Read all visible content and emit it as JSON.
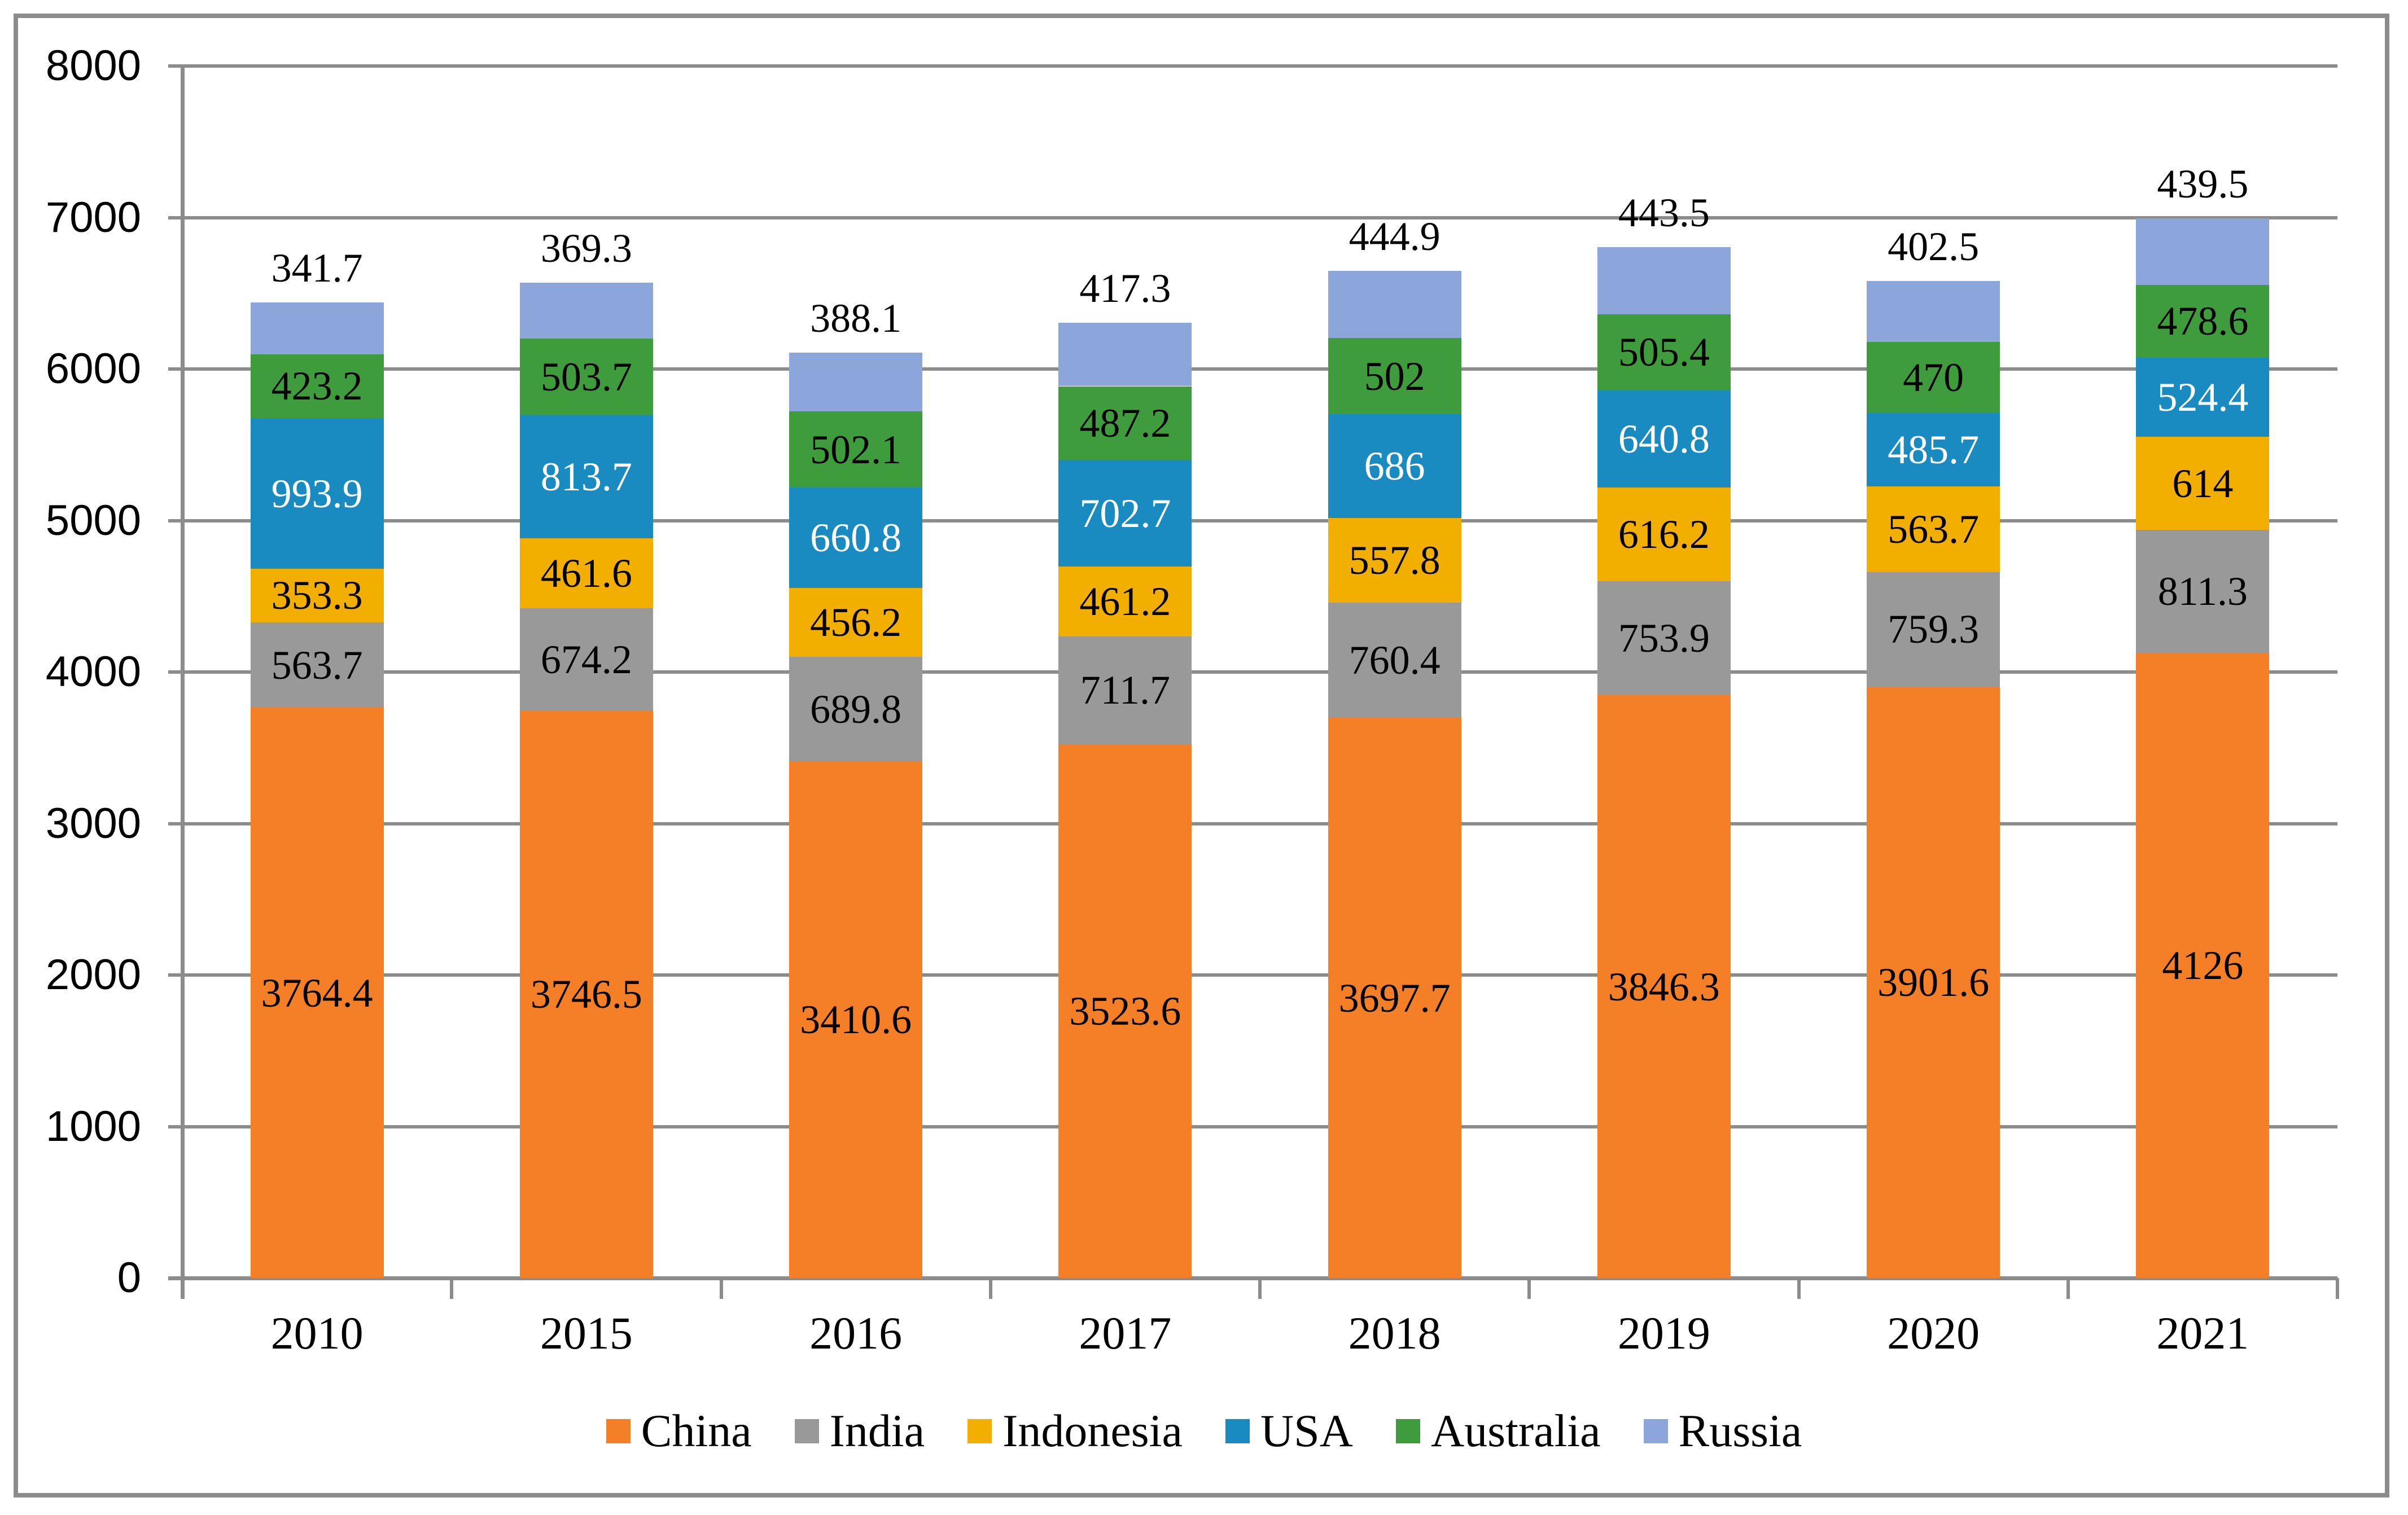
{
  "chart_data": {
    "type": "bar",
    "stacked": true,
    "title": "",
    "xlabel": "",
    "ylabel": "",
    "categories": [
      "2010",
      "2015",
      "2016",
      "2017",
      "2018",
      "2019",
      "2020",
      "2021"
    ],
    "series": [
      {
        "name": "China",
        "color": "#F57F27",
        "label_color": "#000000",
        "label_position": "inside",
        "values": [
          3764.4,
          3746.5,
          3410.6,
          3523.6,
          3697.7,
          3846.3,
          3901.6,
          4126
        ],
        "labels": [
          "3764.4",
          "3746.5",
          "3410.6",
          "3523.6",
          "3697.7",
          "3846.3",
          "3901.6",
          "4126"
        ]
      },
      {
        "name": "India",
        "color": "#999999",
        "label_color": "#000000",
        "label_position": "inside",
        "values": [
          563.7,
          674.2,
          689.8,
          711.7,
          760.4,
          753.9,
          759.3,
          811.3
        ],
        "labels": [
          "563.7",
          "674.2",
          "689.8",
          "711.7",
          "760.4",
          "753.9",
          "759.3",
          "811.3"
        ]
      },
      {
        "name": "Indonesia",
        "color": "#F2AF00",
        "label_color": "#000000",
        "label_position": "inside",
        "values": [
          353.3,
          461.6,
          456.2,
          461.2,
          557.8,
          616.2,
          563.7,
          614
        ],
        "labels": [
          "353.3",
          "461.6",
          "456.2",
          "461.2",
          "557.8",
          "616.2",
          "563.7",
          "614"
        ]
      },
      {
        "name": "USA",
        "color": "#1A8BC0",
        "label_color": "#FFFFFF",
        "label_position": "inside",
        "values": [
          993.9,
          813.7,
          660.8,
          702.7,
          686,
          640.8,
          485.7,
          524.4
        ],
        "labels": [
          "993.9",
          "813.7",
          "660.8",
          "702.7",
          "686",
          "640.8",
          "485.7",
          "524.4"
        ]
      },
      {
        "name": "Australia",
        "color": "#3F9C3C",
        "label_color": "#000000",
        "label_position": "inside",
        "values": [
          423.2,
          503.7,
          502.1,
          487.2,
          502,
          505.4,
          470,
          478.6
        ],
        "labels": [
          "423.2",
          "503.7",
          "502.1",
          "487.2",
          "502",
          "505.4",
          "470",
          "478.6"
        ]
      },
      {
        "name": "Russia",
        "color": "#8CA5DA",
        "label_color": "#000000",
        "label_position": "above",
        "values": [
          341.7,
          369.3,
          388.1,
          417.3,
          444.9,
          443.5,
          402.5,
          439.5
        ],
        "labels": [
          "341.7",
          "369.3",
          "388.1",
          "417.3",
          "444.9",
          "443.5",
          "402.5",
          "439.5"
        ]
      }
    ],
    "ylim": [
      0,
      8000
    ],
    "ytick_step": 1000,
    "yticks": [
      "0",
      "1000",
      "2000",
      "3000",
      "4000",
      "5000",
      "6000",
      "7000",
      "8000"
    ],
    "grid": "horizontal",
    "legend_position": "bottom",
    "legend": [
      "China",
      "India",
      "Indonesia",
      "USA",
      "Australia",
      "Russia"
    ]
  },
  "colors": {
    "background": "#FFFFFF",
    "frame_and_grid": "#8C8C8C",
    "axis_text": "#000000"
  }
}
